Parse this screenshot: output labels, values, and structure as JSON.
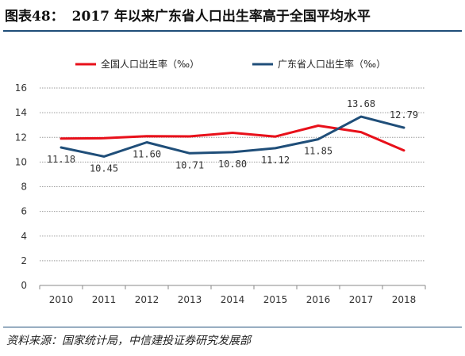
{
  "header": {
    "figure_label": "图表48：",
    "title": "2017 年以来广东省人口出生率高于全国平均水平"
  },
  "footer": {
    "source": "资料来源：国家统计局，中信建投证券研究发展部"
  },
  "chart_data": {
    "type": "line",
    "title": "2017 年以来广东省人口出生率高于全国平均水平",
    "xlabel": "",
    "ylabel": "",
    "x": [
      "2010",
      "2011",
      "2012",
      "2013",
      "2014",
      "2015",
      "2016",
      "2017",
      "2018"
    ],
    "ylim": [
      0,
      16
    ],
    "yticks": [
      0,
      2,
      4,
      6,
      8,
      10,
      12,
      14,
      16
    ],
    "grid": true,
    "legend_position": "top",
    "series": [
      {
        "name": "全国人口出生率（‰）",
        "color": "#e8101a",
        "values": [
          11.9,
          11.93,
          12.1,
          12.08,
          12.37,
          12.07,
          12.95,
          12.43,
          10.94
        ],
        "show_labels": false
      },
      {
        "name": "广东省人口出生率（‰）",
        "color": "#1f4e79",
        "values": [
          11.18,
          10.45,
          11.6,
          10.71,
          10.8,
          11.12,
          11.85,
          13.68,
          12.79
        ],
        "labels": [
          "11.18",
          "10.45",
          "11.60",
          "10.71",
          "10.80",
          "11.12",
          "11.85",
          "13.68",
          "12.79"
        ],
        "show_labels": true
      }
    ]
  }
}
